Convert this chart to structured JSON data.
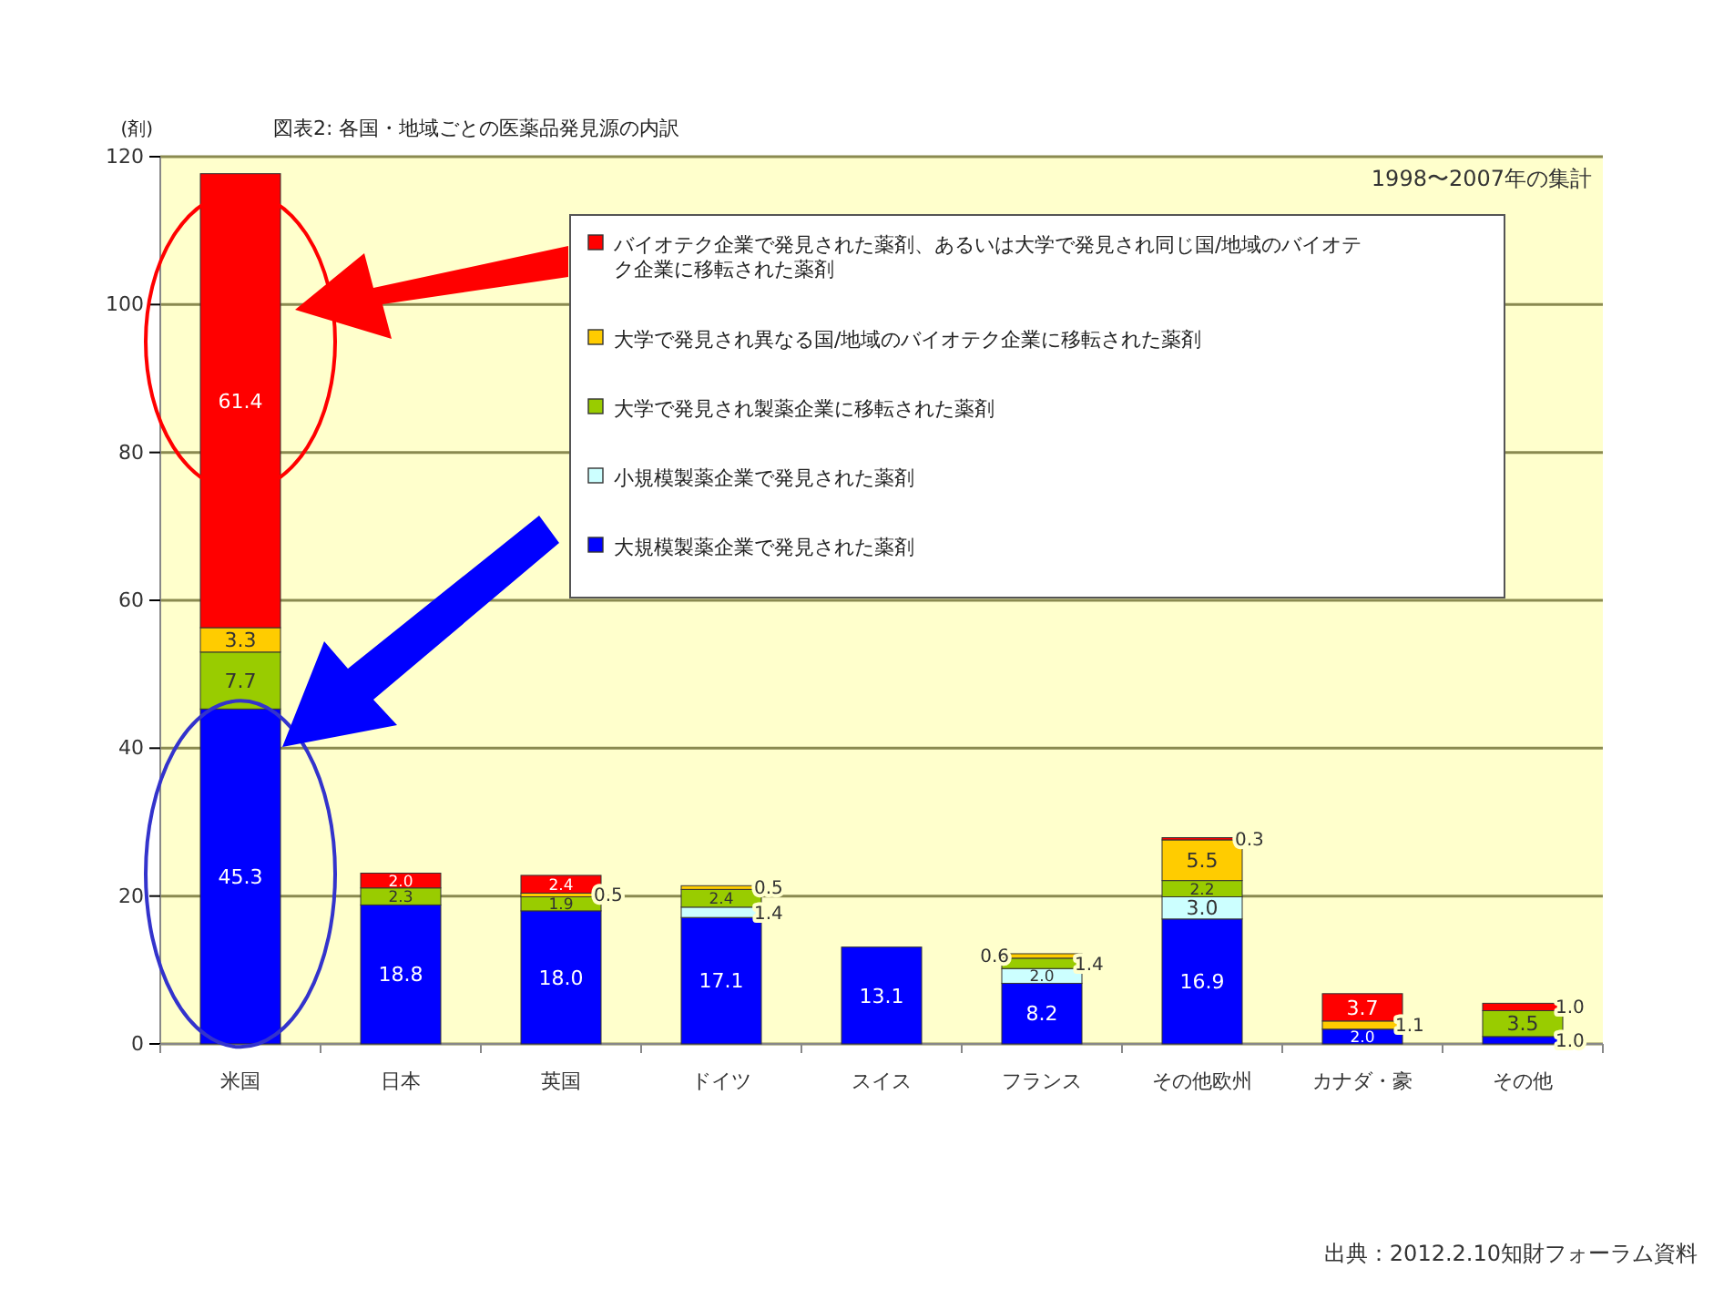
{
  "chart_data": {
    "type": "bar",
    "stacked": true,
    "title": "図表2: 各国・地域ごとの医薬品発見源の内訳",
    "ylabel": "(剤)",
    "annotations": [
      "1998〜2007年の集計",
      "出典：2012.2.10知財フォーラム資料"
    ],
    "categories": [
      "米国",
      "日本",
      "英国",
      "ドイツ",
      "スイス",
      "フランス",
      "その他欧州",
      "カナダ・豪",
      "その他"
    ],
    "series": [
      {
        "name": "大規模製薬企業で発見された薬剤",
        "color": "#0000ff",
        "values": [
          45.3,
          18.8,
          18.0,
          17.1,
          13.1,
          8.2,
          16.9,
          2.0,
          1.0
        ],
        "value_labels": [
          "45.3",
          "18.8",
          "18.0",
          "17.1",
          "13.1",
          "8.2",
          "16.9",
          "2.0",
          "1.0"
        ]
      },
      {
        "name": "小規模製薬企業で発見された薬剤",
        "color": "#ccffff",
        "values": [
          null,
          null,
          null,
          1.4,
          null,
          2.0,
          3.0,
          null,
          null
        ],
        "value_labels": [
          null,
          null,
          null,
          "1.4",
          null,
          "2.0",
          "3.0",
          null,
          null
        ]
      },
      {
        "name": "大学で発見され製薬企業に移転された薬剤",
        "color": "#99cc00",
        "values": [
          7.7,
          2.3,
          1.9,
          2.4,
          null,
          1.4,
          2.2,
          null,
          3.5
        ],
        "value_labels": [
          "7.7",
          "2.3",
          "1.9",
          "2.4",
          null,
          "1.4",
          "2.2",
          null,
          "3.5"
        ]
      },
      {
        "name": "大学で発見され異なる国/地域のバイオテク企業に移転された薬剤",
        "color": "#ffcc00",
        "values": [
          3.3,
          null,
          0.5,
          0.5,
          null,
          0.6,
          5.5,
          1.1,
          null
        ],
        "value_labels": [
          "3.3",
          null,
          "0.5",
          "0.5",
          null,
          "0.6",
          "5.5",
          "1.1",
          null
        ]
      },
      {
        "name": "バイオテク企業で発見された薬剤、あるいは大学で発見され同じ国/地域のバイオテク企業に移転された薬剤",
        "color": "#ff0000",
        "values": [
          61.4,
          2.0,
          2.4,
          null,
          null,
          null,
          0.3,
          3.7,
          1.0
        ],
        "value_labels": [
          "61.4",
          "2.0",
          "2.4",
          null,
          null,
          null,
          "0.3",
          "3.7",
          "1.0"
        ]
      }
    ],
    "ylim": [
      0,
      120
    ],
    "yticks": [
      0,
      20,
      40,
      60,
      80,
      100,
      120
    ],
    "grid": "y",
    "legend": "top right"
  }
}
